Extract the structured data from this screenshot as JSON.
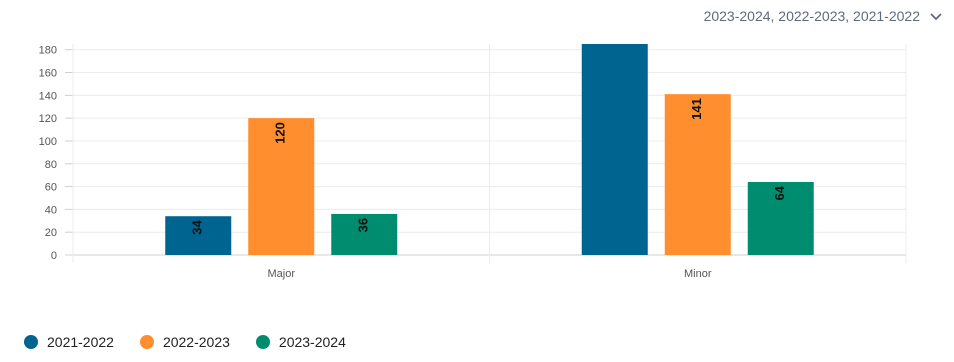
{
  "filter": {
    "label": "2023-2024, 2022-2023, 2021-2022",
    "icon": "chevron-down-icon"
  },
  "chart_data": {
    "type": "bar",
    "categories": [
      "Major",
      "Minor"
    ],
    "series": [
      {
        "name": "2021-2022",
        "color": "#006490",
        "values": [
          34,
          187
        ],
        "labels": [
          "34",
          ""
        ]
      },
      {
        "name": "2022-2023",
        "color": "#FF8E2E",
        "values": [
          120,
          141
        ],
        "labels": [
          "120",
          "141"
        ]
      },
      {
        "name": "2023-2024",
        "color": "#008D6F",
        "values": [
          36,
          64
        ],
        "labels": [
          "36",
          "64"
        ]
      }
    ],
    "y_ticks": [
      "0",
      "20",
      "40",
      "60",
      "80",
      "100",
      "120",
      "140",
      "160",
      "180"
    ],
    "ylim": [
      0,
      185
    ],
    "grid": true,
    "legend_position": "bottom-left",
    "title": "",
    "xlabel": "",
    "ylabel": ""
  }
}
